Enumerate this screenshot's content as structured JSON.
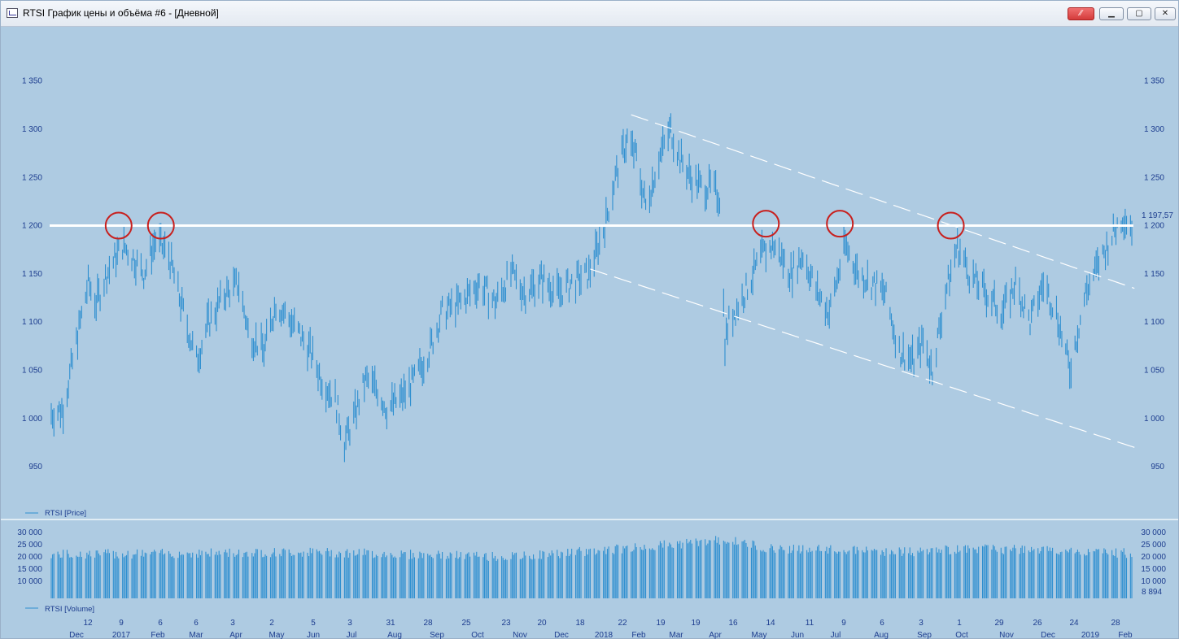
{
  "window": {
    "title": "RTSI График цены и объёма #6 - [Дневной]",
    "icon": "chart-window-icon",
    "buttons": [
      {
        "name": "link-button",
        "icon": "link-icon"
      },
      {
        "name": "minimize-button",
        "icon": "minimize-icon"
      },
      {
        "name": "maximize-button",
        "icon": "maximize-icon"
      },
      {
        "name": "close-button",
        "icon": "close-icon"
      }
    ]
  },
  "colors": {
    "background": "#aecbe2",
    "bars": "#2e8fd0",
    "axis_text": "#1c3c8e",
    "resistance_line": "#ffffff",
    "channel_lines": "#ffffff",
    "circles": "#c8201e"
  },
  "price_panel": {
    "legend": "RTSI [Price]",
    "y_ticks": [
      "1 350",
      "1 300",
      "1 250",
      "1 200",
      "1 150",
      "1 100",
      "1 050",
      "1 000",
      "950"
    ],
    "last_value": "1 197,57"
  },
  "volume_panel": {
    "legend": "RTSI [Volume]",
    "y_ticks": [
      "30 000",
      "25 000",
      "20 000",
      "15 000",
      "10 000"
    ],
    "last_value": "8 894"
  },
  "x_axis": {
    "day_labels": [
      "12",
      "9",
      "6",
      "6",
      "3",
      "2",
      "5",
      "3",
      "31",
      "28",
      "25",
      "23",
      "20",
      "18",
      "22",
      "19",
      "19",
      "16",
      "14",
      "11",
      "9",
      "6",
      "3",
      "1",
      "29",
      "26",
      "24",
      "28"
    ],
    "month_labels": [
      "Dec",
      "2017",
      "Feb",
      "Mar",
      "Apr",
      "May",
      "Jun",
      "Jul",
      "Aug",
      "Sep",
      "Oct",
      "Nov",
      "Dec",
      "2018",
      "Feb",
      "Mar",
      "Apr",
      "May",
      "Jun",
      "Jul",
      "Aug",
      "Sep",
      "Oct",
      "Nov",
      "Dec",
      "2019",
      "Feb"
    ]
  },
  "chart_data": {
    "type": "bar",
    "series": [
      {
        "name": "RTSI [Price]",
        "anchors": [
          [
            "2016-11-16",
            1005
          ],
          [
            "2016-11-25",
            1010
          ],
          [
            "2016-12-08",
            1100
          ],
          [
            "2016-12-14",
            1140
          ],
          [
            "2016-12-20",
            1120
          ],
          [
            "2016-12-28",
            1150
          ],
          [
            "2017-01-09",
            1180
          ],
          [
            "2017-01-18",
            1165
          ],
          [
            "2017-01-25",
            1150
          ],
          [
            "2017-02-03",
            1185
          ],
          [
            "2017-02-13",
            1170
          ],
          [
            "2017-02-22",
            1120
          ],
          [
            "2017-03-06",
            1060
          ],
          [
            "2017-03-15",
            1100
          ],
          [
            "2017-03-28",
            1130
          ],
          [
            "2017-04-07",
            1140
          ],
          [
            "2017-04-14",
            1090
          ],
          [
            "2017-04-26",
            1070
          ],
          [
            "2017-05-05",
            1120
          ],
          [
            "2017-05-17",
            1100
          ],
          [
            "2017-05-31",
            1070
          ],
          [
            "2017-06-09",
            1040
          ],
          [
            "2017-06-19",
            1020
          ],
          [
            "2017-06-26",
            975
          ],
          [
            "2017-07-03",
            1000
          ],
          [
            "2017-07-12",
            1040
          ],
          [
            "2017-07-21",
            1030
          ],
          [
            "2017-07-28",
            1010
          ],
          [
            "2017-08-07",
            1020
          ],
          [
            "2017-08-18",
            1040
          ],
          [
            "2017-08-29",
            1070
          ],
          [
            "2017-09-08",
            1110
          ],
          [
            "2017-09-22",
            1120
          ],
          [
            "2017-10-06",
            1140
          ],
          [
            "2017-10-18",
            1120
          ],
          [
            "2017-10-30",
            1150
          ],
          [
            "2017-11-10",
            1130
          ],
          [
            "2017-11-22",
            1145
          ],
          [
            "2017-12-05",
            1130
          ],
          [
            "2017-12-15",
            1140
          ],
          [
            "2017-12-28",
            1150
          ],
          [
            "2018-01-09",
            1200
          ],
          [
            "2018-01-17",
            1250
          ],
          [
            "2018-01-26",
            1290
          ],
          [
            "2018-02-02",
            1270
          ],
          [
            "2018-02-09",
            1220
          ],
          [
            "2018-02-19",
            1270
          ],
          [
            "2018-02-28",
            1300
          ],
          [
            "2018-03-07",
            1270
          ],
          [
            "2018-03-15",
            1250
          ],
          [
            "2018-03-23",
            1240
          ],
          [
            "2018-03-30",
            1240
          ],
          [
            "2018-04-06",
            1230
          ],
          [
            "2018-04-10",
            1080
          ],
          [
            "2018-04-13",
            1100
          ],
          [
            "2018-04-25",
            1130
          ],
          [
            "2018-05-08",
            1170
          ],
          [
            "2018-05-17",
            1180
          ],
          [
            "2018-05-30",
            1150
          ],
          [
            "2018-06-08",
            1170
          ],
          [
            "2018-06-19",
            1130
          ],
          [
            "2018-06-28",
            1110
          ],
          [
            "2018-07-10",
            1180
          ],
          [
            "2018-07-20",
            1150
          ],
          [
            "2018-07-31",
            1140
          ],
          [
            "2018-08-09",
            1130
          ],
          [
            "2018-08-20",
            1070
          ],
          [
            "2018-08-31",
            1060
          ],
          [
            "2018-09-07",
            1080
          ],
          [
            "2018-09-14",
            1050
          ],
          [
            "2018-09-24",
            1130
          ],
          [
            "2018-10-03",
            1180
          ],
          [
            "2018-10-12",
            1150
          ],
          [
            "2018-10-24",
            1130
          ],
          [
            "2018-11-06",
            1110
          ],
          [
            "2018-11-16",
            1140
          ],
          [
            "2018-11-27",
            1100
          ],
          [
            "2018-12-07",
            1140
          ],
          [
            "2018-12-17",
            1110
          ],
          [
            "2018-12-27",
            1050
          ],
          [
            "2019-01-08",
            1130
          ],
          [
            "2019-01-18",
            1160
          ],
          [
            "2019-01-28",
            1190
          ],
          [
            "2019-02-05",
            1210
          ],
          [
            "2019-02-12",
            1200
          ]
        ]
      },
      {
        "name": "RTSI [Volume]",
        "anchors": [
          [
            "2016-11-16",
            21000
          ],
          [
            "2017-06-01",
            22000
          ],
          [
            "2017-11-01",
            20000
          ],
          [
            "2018-01-25",
            23500
          ],
          [
            "2018-04-10",
            27000
          ],
          [
            "2018-05-15",
            23500
          ],
          [
            "2018-08-31",
            22000
          ],
          [
            "2018-10-15",
            23500
          ],
          [
            "2019-02-12",
            21500
          ]
        ]
      }
    ],
    "x_range": [
      "2016-11-16",
      "2019-02-12"
    ],
    "ylim_price": [
      945,
      1375
    ],
    "ylim_volume": [
      3000,
      31000
    ],
    "resistance_level": 1200,
    "channel_upper": [
      [
        "2018-01-29",
        1315
      ],
      [
        "2019-02-14",
        1135
      ]
    ],
    "channel_lower": [
      [
        "2017-12-29",
        1155
      ],
      [
        "2019-02-14",
        970
      ]
    ],
    "highlights": [
      [
        "2017-01-06",
        1200
      ],
      [
        "2017-02-07",
        1200
      ],
      [
        "2018-05-11",
        1202
      ],
      [
        "2018-07-06",
        1202
      ],
      [
        "2018-09-28",
        1200
      ]
    ],
    "grid": false,
    "legend": "bottom-left"
  }
}
